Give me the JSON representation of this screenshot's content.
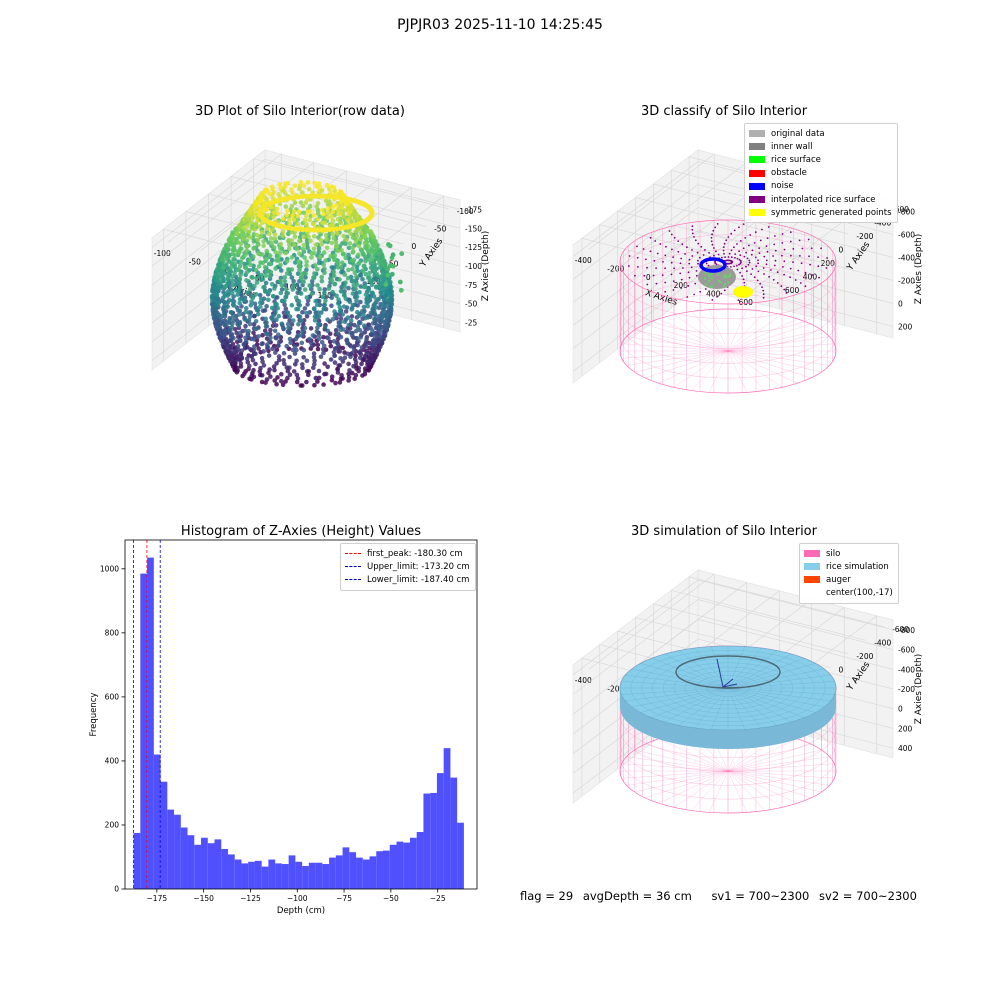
{
  "suptitle": "PJPJR03 2025-11-10 14:25:45",
  "status": {
    "flag": "flag = 29",
    "avg_depth": "avgDepth = 36 cm",
    "sv1": "sv1 = 700~2300",
    "sv2": "sv2 = 700~2300"
  },
  "colors": {
    "pane": "#f2f2f2",
    "grid": "#d6d6d6",
    "silo_wire": "#ff69b4",
    "rice_sim": "#87ceeb",
    "hist_bar": "#4c4cff"
  },
  "chart_data": [
    {
      "type": "scatter",
      "projection": "3d",
      "title": "3D Plot of Silo Interior(row data)",
      "xlabel": "X Axies",
      "ylabel": "Y Axies",
      "zlabel": "Z Axies (Depth)",
      "xticks": [
        "-100",
        "-50",
        "0",
        "50",
        "100",
        "150"
      ],
      "yticks": [
        "-100",
        "-50",
        "0",
        "50",
        "100"
      ],
      "zticks": [
        "-25",
        "-50",
        "-75",
        "-100",
        "-125",
        "-150",
        "-175"
      ],
      "xlim": [
        -120,
        160
      ],
      "ylim": [
        -120,
        120
      ],
      "zlim": [
        -190,
        0
      ],
      "colormap": "viridis",
      "grid": true
    },
    {
      "type": "scatter",
      "projection": "3d",
      "title": "3D classify of Silo Interior",
      "xlabel": "X Axies",
      "ylabel": "Y Axies",
      "zlabel": "Z Axies (Depth)",
      "xticks": [
        "-400",
        "-200",
        "0",
        "200",
        "400",
        "600"
      ],
      "yticks": [
        "-600",
        "-400",
        "-200",
        "0",
        "200",
        "400",
        "600"
      ],
      "zticks": [
        "200",
        "0",
        "-200",
        "-400",
        "-600",
        "-800"
      ],
      "zticks_partial": "00",
      "legend_position": "upper right",
      "legend": [
        {
          "label": "original data",
          "color": "#b0b0b0"
        },
        {
          "label": "inner wall",
          "color": "#808080"
        },
        {
          "label": "rice surface",
          "color": "#00ff00"
        },
        {
          "label": "obstacle",
          "color": "#ff0000"
        },
        {
          "label": "noise",
          "color": "#0000ff"
        },
        {
          "label": "interpolated rice surface",
          "color": "#800080"
        },
        {
          "label": "symmetric generated points",
          "color": "#ffff00"
        }
      ],
      "grid": true
    },
    {
      "type": "bar",
      "title": "Histogram of Z-Axies (Height) Values",
      "xlabel": "Depth (cm)",
      "ylabel": "Frequency",
      "xlim": [
        -192,
        -4
      ],
      "ylim": [
        0,
        1090
      ],
      "xticks": [
        -175,
        -150,
        -125,
        -100,
        -75,
        -50,
        -25
      ],
      "xtick_labels": [
        "−175",
        "−150",
        "−125",
        "−100",
        "−75",
        "−50",
        "−25"
      ],
      "yticks": [
        0,
        200,
        400,
        600,
        800,
        1000
      ],
      "bin_start": -187.4,
      "bin_width": 3.6,
      "counts": [
        175,
        985,
        1035,
        420,
        335,
        248,
        232,
        192,
        168,
        138,
        160,
        143,
        155,
        125,
        108,
        92,
        80,
        85,
        88,
        70,
        92,
        80,
        78,
        105,
        85,
        72,
        82,
        82,
        78,
        98,
        105,
        130,
        115,
        98,
        92,
        102,
        118,
        120,
        138,
        148,
        145,
        160,
        178,
        298,
        300,
        362,
        440,
        348,
        207
      ],
      "vlines": [
        {
          "label": "first_peak: -180.30 cm",
          "x": -180.3,
          "color": "#ff0000"
        },
        {
          "label": "Upper_limit: -173.20 cm",
          "x": -173.2,
          "color": "#0000bb"
        },
        {
          "label": "Lower_limit: -187.40 cm",
          "x": -187.4,
          "color": "#0000bb"
        }
      ],
      "legend_position": "upper right",
      "grid": false
    },
    {
      "type": "area",
      "projection": "3d",
      "title": "3D simulation of Silo Interior",
      "xlabel": "X Axies",
      "ylabel": "Y Axies",
      "zlabel": "Z Axies (Depth)",
      "xticks": [
        "-400",
        "-200",
        "0",
        "200",
        "400",
        "600"
      ],
      "yticks": [
        "-600",
        "-400",
        "-200",
        "0",
        "200",
        "400",
        "600"
      ],
      "zticks": [
        "400",
        "200",
        "0",
        "-200",
        "-400",
        "-600",
        "-800"
      ],
      "legend_position": "upper right",
      "legend": [
        {
          "label": "silo",
          "color": "#ff69b4"
        },
        {
          "label": "rice simulation",
          "color": "#87ceeb"
        },
        {
          "label": "auger",
          "color": "#ff4500"
        },
        {
          "label": "center(100,-17)",
          "color": ""
        }
      ],
      "grid": true
    }
  ]
}
